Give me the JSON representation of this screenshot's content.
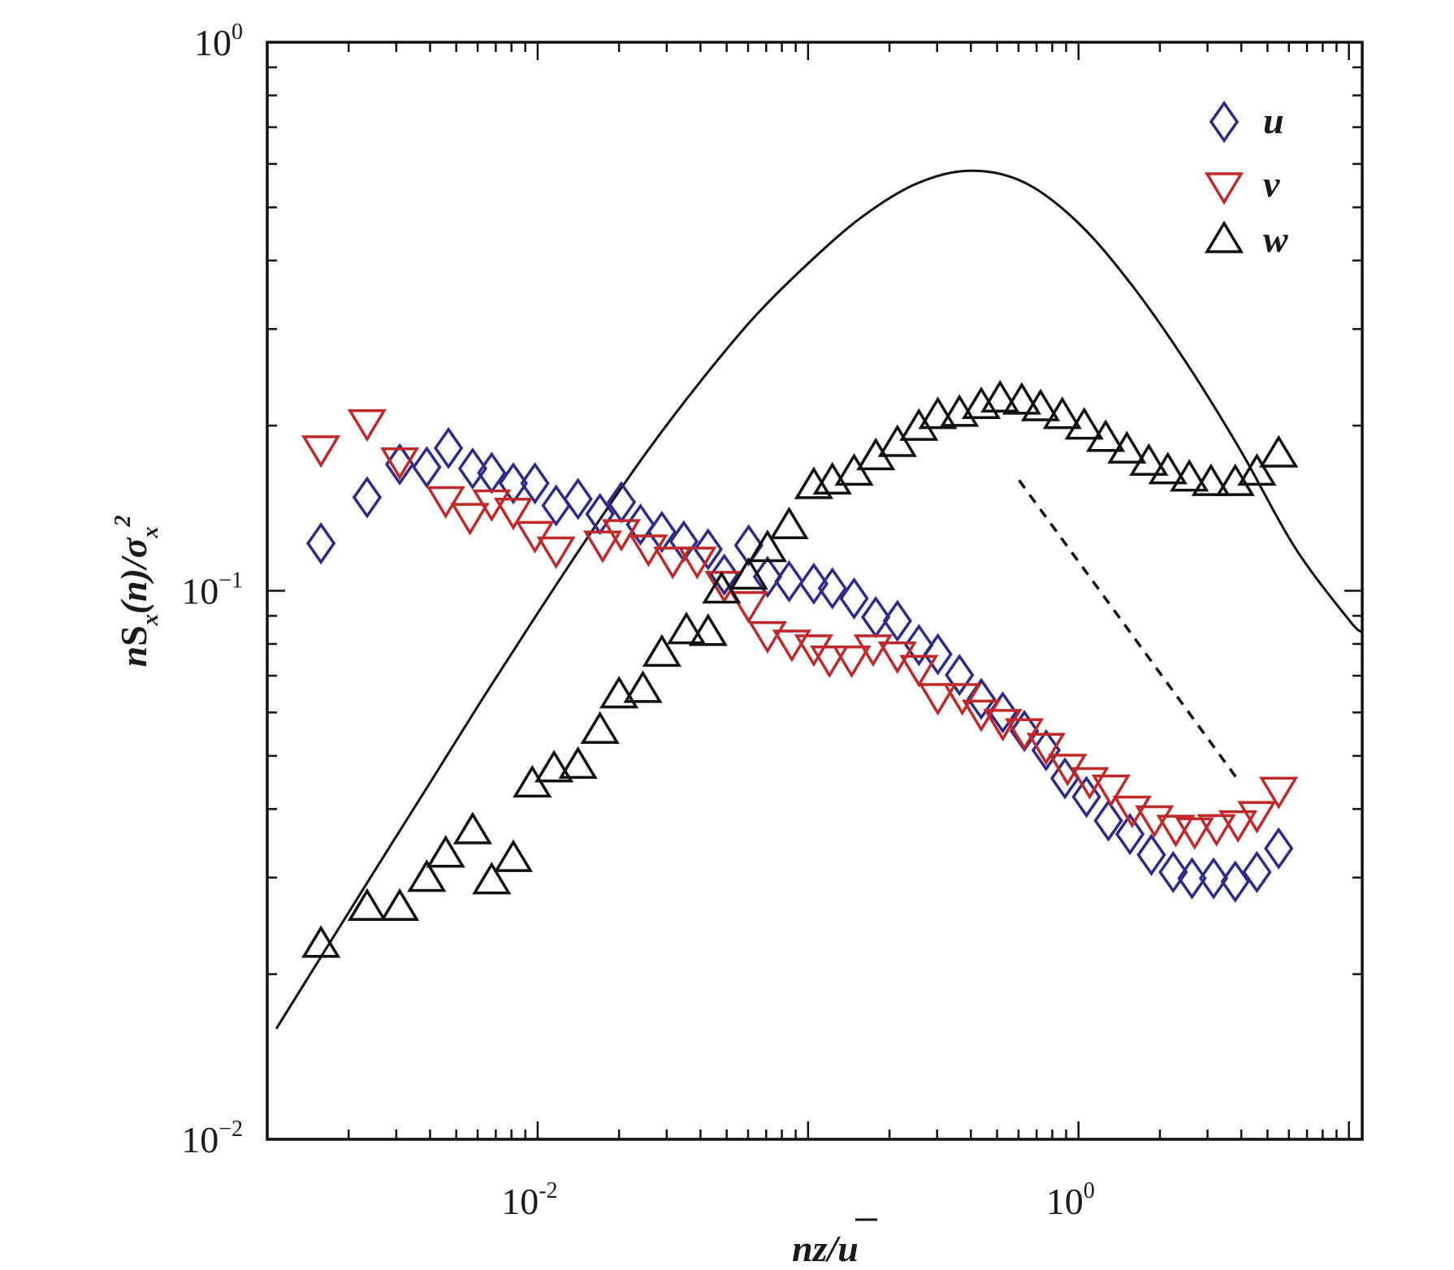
{
  "chart_data": {
    "type": "scatter",
    "title": "",
    "xlabel": "nz/ū",
    "xlabel_parts": {
      "main": "nz/",
      "bar": "u"
    },
    "ylabel": "nS_x(n)/σ_x^2",
    "ylabel_parts": {
      "n": "n",
      "S": "S",
      "sub1": "x",
      "paren": "(n)/σ",
      "sub2": "x",
      "sup": "2"
    },
    "x_scale": "log",
    "y_scale": "log",
    "xlim": [
      0.001,
      11.2
    ],
    "ylim": [
      0.01,
      1
    ],
    "grid": false,
    "legend_position": "top-right",
    "x_ticks": [
      {
        "value": 0.01,
        "base": "10",
        "exp": "-2"
      },
      {
        "value": 1,
        "base": "10",
        "exp": "0"
      }
    ],
    "y_ticks": [
      {
        "value": 1,
        "base": "10",
        "exp": "0"
      },
      {
        "value": 0.1,
        "base": "10",
        "exp": "−1"
      },
      {
        "value": 0.01,
        "base": "10",
        "exp": "−2"
      }
    ],
    "series": [
      {
        "name": "u",
        "marker": "diamond",
        "color": "#2e2a8a",
        "x": [
          0.00158,
          0.00234,
          0.00309,
          0.00389,
          0.00468,
          0.00575,
          0.00676,
          0.00813,
          0.00977,
          0.0117,
          0.0141,
          0.017,
          0.0204,
          0.024,
          0.0288,
          0.0347,
          0.0427,
          0.049,
          0.0603,
          0.0708,
          0.0851,
          0.105,
          0.123,
          0.148,
          0.178,
          0.214,
          0.257,
          0.302,
          0.363,
          0.437,
          0.525,
          0.631,
          0.759,
          0.891,
          1.07,
          1.29,
          1.55,
          1.86,
          2.24,
          2.63,
          3.16,
          3.8,
          4.57,
          5.5
        ],
        "y": [
          0.122,
          0.148,
          0.17,
          0.168,
          0.182,
          0.167,
          0.164,
          0.157,
          0.157,
          0.143,
          0.147,
          0.138,
          0.145,
          0.132,
          0.128,
          0.123,
          0.119,
          0.107,
          0.121,
          0.106,
          0.104,
          0.103,
          0.101,
          0.0968,
          0.0895,
          0.0881,
          0.0796,
          0.0766,
          0.0702,
          0.0635,
          0.06,
          0.0555,
          0.0512,
          0.0455,
          0.0421,
          0.0381,
          0.036,
          0.033,
          0.0307,
          0.0299,
          0.0299,
          0.0295,
          0.0307,
          0.0339
        ]
      },
      {
        "name": "v",
        "marker": "triangle-down",
        "color": "#c0282a",
        "x": [
          0.00158,
          0.00234,
          0.00309,
          0.00457,
          0.00562,
          0.00676,
          0.00813,
          0.00977,
          0.0117,
          0.0174,
          0.0204,
          0.0257,
          0.0316,
          0.0389,
          0.049,
          0.0603,
          0.0708,
          0.0871,
          0.105,
          0.12,
          0.145,
          0.174,
          0.214,
          0.257,
          0.302,
          0.372,
          0.437,
          0.525,
          0.631,
          0.759,
          0.912,
          1.1,
          1.32,
          1.58,
          1.91,
          2.29,
          2.69,
          3.24,
          3.89,
          4.57,
          5.5
        ],
        "y": [
          0.182,
          0.203,
          0.173,
          0.147,
          0.137,
          0.145,
          0.14,
          0.127,
          0.119,
          0.122,
          0.128,
          0.12,
          0.114,
          0.114,
          0.103,
          0.0946,
          0.0834,
          0.0805,
          0.0789,
          0.0753,
          0.0753,
          0.0789,
          0.0766,
          0.0724,
          0.0643,
          0.0643,
          0.06,
          0.0577,
          0.0555,
          0.0522,
          0.0478,
          0.0452,
          0.0438,
          0.0401,
          0.0385,
          0.037,
          0.0366,
          0.0371,
          0.0377,
          0.0392,
          0.0434
        ]
      },
      {
        "name": "w",
        "marker": "triangle-up",
        "color": "#111111",
        "x": [
          0.00158,
          0.00234,
          0.00309,
          0.00389,
          0.00457,
          0.00575,
          0.00676,
          0.00813,
          0.00955,
          0.0115,
          0.0141,
          0.017,
          0.02,
          0.0245,
          0.0288,
          0.0355,
          0.0427,
          0.0479,
          0.0603,
          0.0708,
          0.0851,
          0.105,
          0.123,
          0.148,
          0.178,
          0.214,
          0.257,
          0.302,
          0.363,
          0.437,
          0.513,
          0.617,
          0.724,
          0.871,
          1.05,
          1.26,
          1.51,
          1.82,
          2.14,
          2.57,
          3.09,
          3.8,
          4.57,
          5.5
        ],
        "y": [
          0.0226,
          0.0264,
          0.0264,
          0.0298,
          0.033,
          0.0364,
          0.0295,
          0.0324,
          0.0443,
          0.0472,
          0.0479,
          0.0555,
          0.0644,
          0.0659,
          0.0767,
          0.0843,
          0.0837,
          0.1,
          0.106,
          0.119,
          0.131,
          0.155,
          0.158,
          0.164,
          0.175,
          0.185,
          0.198,
          0.208,
          0.21,
          0.217,
          0.223,
          0.221,
          0.215,
          0.208,
          0.199,
          0.189,
          0.18,
          0.171,
          0.165,
          0.16,
          0.157,
          0.157,
          0.164,
          0.177
        ]
      }
    ],
    "reference_curves": [
      {
        "name": "model-spectrum",
        "style": "solid",
        "color": "#111111",
        "x": [
          0.00108,
          0.00158,
          0.00251,
          0.00398,
          0.00631,
          0.01,
          0.0158,
          0.0251,
          0.0398,
          0.0631,
          0.1,
          0.158,
          0.251,
          0.398,
          0.631,
          1.0,
          1.58,
          2.51,
          3.98,
          6.31,
          10.0,
          11.2
        ],
        "y": [
          0.0159,
          0.0215,
          0.031,
          0.0445,
          0.064,
          0.091,
          0.128,
          0.178,
          0.24,
          0.315,
          0.395,
          0.48,
          0.552,
          0.583,
          0.555,
          0.468,
          0.36,
          0.26,
          0.18,
          0.12,
          0.0885,
          0.084
        ]
      },
      {
        "name": "slope-line",
        "style": "dashed",
        "color": "#111111",
        "x": [
          0.603,
          3.89
        ],
        "y": [
          0.159,
          0.0452
        ]
      }
    ]
  },
  "legend": [
    {
      "label": "u",
      "marker": "diamond",
      "color": "#2e2a8a"
    },
    {
      "label": "v",
      "marker": "triangle-down",
      "color": "#c0282a"
    },
    {
      "label": "w",
      "marker": "triangle-up",
      "color": "#111111"
    }
  ]
}
